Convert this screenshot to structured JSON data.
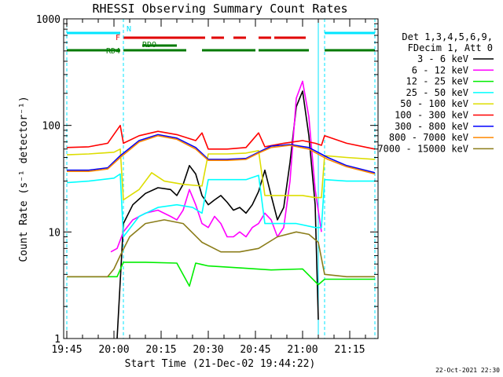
{
  "chart_data": {
    "type": "line",
    "title": "RHESSI Observing Summary Count Rates",
    "xlabel": "Start Time (21-Dec-02 19:44:22)",
    "ylabel": "Count Rate (s⁻¹ detector⁻¹)",
    "yscale": "log",
    "ylim": [
      1,
      1000
    ],
    "xlim": [
      "19:44",
      "21:24"
    ],
    "x_ticks": [
      "19:45",
      "20:00",
      "20:15",
      "20:30",
      "20:45",
      "21:00",
      "21:15"
    ],
    "y_ticks": [
      "1",
      "10",
      "100",
      "1000"
    ],
    "legend_header": [
      "Det 1,3,4,5,6,9,",
      "FDecim 1, Att 0"
    ],
    "legend_position": "right",
    "timestamp": "22-Oct-2021 22:30",
    "flags": [
      {
        "name": "N",
        "color": "#00e5ff",
        "label": "N",
        "segments": [
          [
            "19:45",
            "20:02"
          ],
          [
            "21:07",
            "21:23"
          ]
        ]
      },
      {
        "name": "F",
        "color": "#e00000",
        "label": "F",
        "segments": [
          [
            "20:03",
            "20:29"
          ],
          [
            "20:31",
            "20:35"
          ],
          [
            "20:38",
            "20:42"
          ],
          [
            "20:46",
            "20:50"
          ],
          [
            "20:51",
            "21:01"
          ]
        ]
      },
      {
        "name": "RDO",
        "color": "#007a00",
        "label": "RDO",
        "segments": [
          [
            "20:09",
            "20:20"
          ]
        ]
      },
      {
        "name": "RD4",
        "color": "#007a00",
        "label": "RD4",
        "segments": [
          [
            "19:45",
            "20:02"
          ],
          [
            "20:03",
            "20:23"
          ],
          [
            "20:28",
            "20:45"
          ],
          [
            "20:46",
            "21:02"
          ],
          [
            "21:07",
            "21:23"
          ]
        ]
      }
    ],
    "vertical_markers": {
      "color": "#00e5ff",
      "times": [
        "19:45",
        "20:03",
        "21:07",
        "21:23"
      ],
      "solid_time": "21:05"
    },
    "series": [
      {
        "name": "3 - 6 keV",
        "color": "#000000",
        "t": [
          "20:01",
          "20:03",
          "20:06",
          "20:10",
          "20:14",
          "20:18",
          "20:20",
          "20:22",
          "20:24",
          "20:26",
          "20:28",
          "20:30",
          "20:32",
          "20:34",
          "20:36",
          "20:38",
          "20:40",
          "20:42",
          "20:44",
          "20:46",
          "20:48",
          "20:50",
          "20:52",
          "20:54",
          "20:56",
          "20:58",
          "21:00",
          "21:02",
          "21:04",
          "21:05"
        ],
        "values": [
          1,
          12,
          18,
          23,
          26,
          25,
          22,
          28,
          42,
          35,
          22,
          18,
          20,
          22,
          19,
          16,
          17,
          15,
          18,
          24,
          38,
          22,
          13,
          17,
          45,
          150,
          210,
          80,
          18,
          1.5
        ]
      },
      {
        "name": "6 - 12 keV",
        "color": "#ff00ff",
        "t": [
          "19:59",
          "20:01",
          "20:03",
          "20:06",
          "20:10",
          "20:14",
          "20:18",
          "20:20",
          "20:22",
          "20:24",
          "20:26",
          "20:28",
          "20:30",
          "20:32",
          "20:34",
          "20:36",
          "20:38",
          "20:40",
          "20:42",
          "20:44",
          "20:46",
          "20:48",
          "20:50",
          "20:52",
          "20:54",
          "20:56",
          "20:58",
          "21:00",
          "21:02",
          "21:04",
          "21:06"
        ],
        "values": [
          6.5,
          7,
          10,
          13,
          15,
          16,
          14,
          13,
          16,
          25,
          18,
          12,
          11,
          14,
          12,
          9,
          9,
          10,
          9,
          11,
          12,
          15,
          13,
          9,
          11,
          30,
          180,
          260,
          120,
          25,
          10
        ]
      },
      {
        "name": "12 - 25 keV",
        "color": "#00ee00",
        "t": [
          "19:45",
          "20:00",
          "20:01",
          "20:03",
          "20:10",
          "20:20",
          "20:24",
          "20:26",
          "20:30",
          "20:40",
          "20:50",
          "21:00",
          "21:05",
          "21:07",
          "21:15",
          "21:23"
        ],
        "values": [
          3.8,
          3.8,
          3.8,
          5.2,
          5.2,
          5.1,
          3.1,
          5.1,
          4.8,
          4.6,
          4.4,
          4.5,
          3.2,
          3.6,
          3.6,
          3.6
        ]
      },
      {
        "name": "25 - 50 keV",
        "color": "#00ffff",
        "t": [
          "19:45",
          "19:52",
          "20:00",
          "20:02",
          "20:03",
          "20:08",
          "20:14",
          "20:20",
          "20:25",
          "20:28",
          "20:30",
          "20:36",
          "20:42",
          "20:46",
          "20:48",
          "20:52",
          "20:58",
          "21:04",
          "21:06",
          "21:07",
          "21:14",
          "21:23"
        ],
        "values": [
          29,
          30,
          32,
          35,
          9,
          14,
          17,
          18,
          17,
          15,
          31,
          31,
          31,
          34,
          12,
          12,
          12,
          11,
          11,
          31,
          30,
          30
        ]
      },
      {
        "name": "50 - 100 keV",
        "color": "#dddd00",
        "t": [
          "19:45",
          "19:52",
          "20:00",
          "20:02",
          "20:03",
          "20:08",
          "20:12",
          "20:16",
          "20:22",
          "20:28",
          "20:30",
          "20:36",
          "20:42",
          "20:46",
          "20:48",
          "20:54",
          "21:00",
          "21:04",
          "21:06",
          "21:07",
          "21:14",
          "21:23"
        ],
        "values": [
          53,
          54,
          56,
          60,
          20,
          25,
          36,
          30,
          28,
          27,
          54,
          54,
          55,
          58,
          22,
          22,
          22,
          21,
          21,
          52,
          50,
          48
        ]
      },
      {
        "name": "100 - 300 keV",
        "color": "#ff0000",
        "t": [
          "19:45",
          "19:52",
          "19:58",
          "20:02",
          "20:03",
          "20:08",
          "20:14",
          "20:20",
          "20:26",
          "20:28",
          "20:30",
          "20:36",
          "20:42",
          "20:46",
          "20:48",
          "20:54",
          "21:00",
          "21:04",
          "21:06",
          "21:07",
          "21:14",
          "21:23"
        ],
        "values": [
          62,
          63,
          68,
          100,
          68,
          80,
          88,
          82,
          72,
          85,
          60,
          60,
          62,
          85,
          63,
          68,
          72,
          68,
          65,
          80,
          68,
          60
        ]
      },
      {
        "name": "300 - 800 keV",
        "color": "#0000ff",
        "t": [
          "19:45",
          "19:52",
          "19:58",
          "20:02",
          "20:08",
          "20:14",
          "20:20",
          "20:26",
          "20:30",
          "20:36",
          "20:42",
          "20:46",
          "20:50",
          "20:56",
          "21:02",
          "21:08",
          "21:14",
          "21:23"
        ],
        "values": [
          38,
          38,
          40,
          52,
          72,
          82,
          76,
          62,
          48,
          48,
          49,
          56,
          64,
          66,
          62,
          50,
          42,
          36
        ]
      },
      {
        "name": "800 - 7000 keV",
        "color": "#ff8800",
        "t": [
          "19:45",
          "19:52",
          "19:58",
          "20:02",
          "20:08",
          "20:14",
          "20:20",
          "20:26",
          "20:30",
          "20:36",
          "20:42",
          "20:46",
          "20:50",
          "20:56",
          "21:02",
          "21:08",
          "21:14",
          "21:23"
        ],
        "values": [
          37,
          37,
          39,
          50,
          70,
          80,
          74,
          60,
          47,
          47,
          48,
          55,
          62,
          65,
          60,
          48,
          41,
          35
        ]
      },
      {
        "name": "7000 - 15000 keV",
        "color": "#8b7d1a",
        "t": [
          "19:45",
          "19:52",
          "19:58",
          "20:00",
          "20:02",
          "20:05",
          "20:10",
          "20:16",
          "20:22",
          "20:28",
          "20:34",
          "20:40",
          "20:46",
          "20:52",
          "20:58",
          "21:02",
          "21:05",
          "21:07",
          "21:14",
          "21:23"
        ],
        "values": [
          3.8,
          3.8,
          3.8,
          4.5,
          6,
          9,
          12,
          13,
          12,
          8,
          6.5,
          6.5,
          7,
          9,
          10,
          9.5,
          8,
          4,
          3.8,
          3.8
        ]
      }
    ]
  }
}
